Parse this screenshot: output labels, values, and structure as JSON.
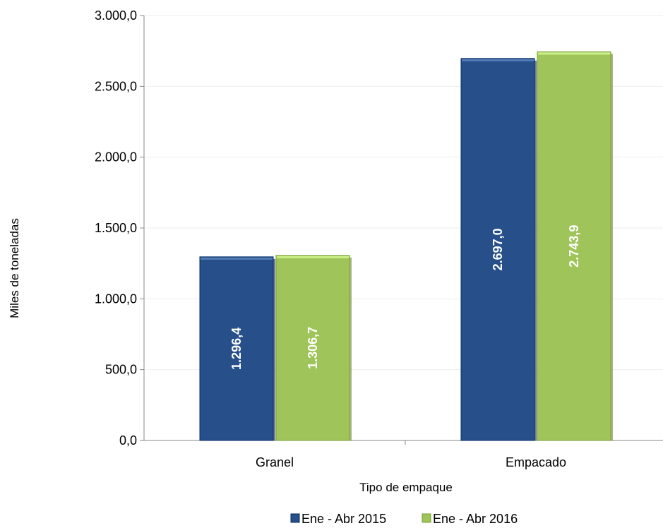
{
  "chart_data": {
    "type": "bar",
    "title": "",
    "xlabel": "Tipo de empaque",
    "ylabel": "Miles de toneladas",
    "categories": [
      "Granel",
      "Empacado"
    ],
    "series": [
      {
        "name": "Ene - Abr 2015",
        "color": "#27508a",
        "values": [
          1296.4,
          2697.0
        ],
        "labels": [
          "1.296,4",
          "2.697,0"
        ]
      },
      {
        "name": "Ene - Abr 2016",
        "color": "#9fc45a",
        "values": [
          1306.7,
          2743.9
        ],
        "labels": [
          "1.306,7",
          "2.743,9"
        ]
      }
    ],
    "ylim": [
      0,
      3000
    ],
    "yticks": [
      0,
      500,
      1000,
      1500,
      2000,
      2500,
      3000
    ],
    "ytick_labels": [
      "0,0",
      "500,0",
      "1.000,0",
      "1.500,0",
      "2.000,0",
      "2.500,0",
      "3.000,0"
    ],
    "grid": true,
    "legend_position": "bottom"
  }
}
